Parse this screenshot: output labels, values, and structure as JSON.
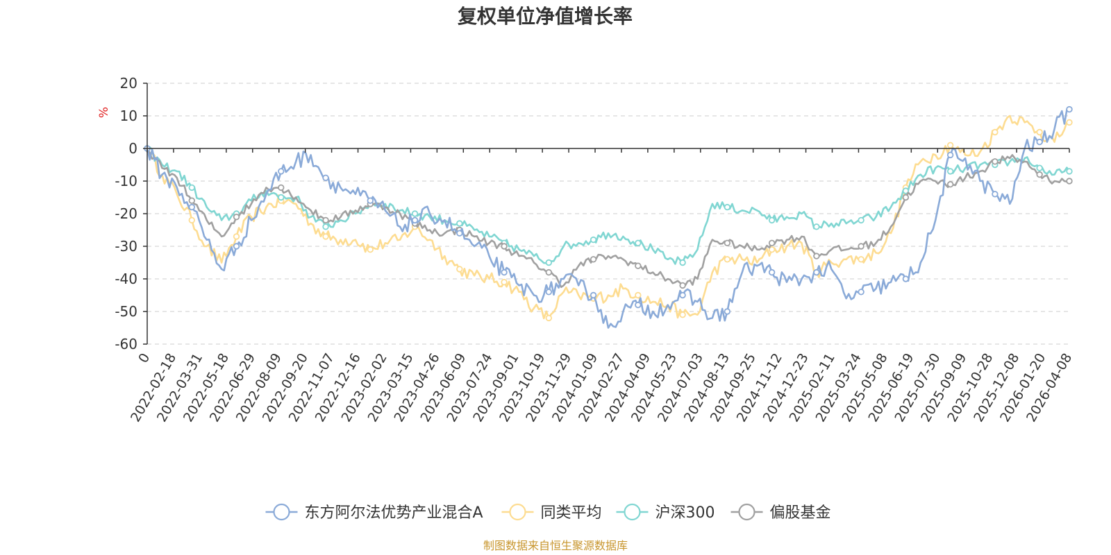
{
  "chart_data": {
    "type": "line",
    "title": "复权单位净值增长率",
    "ylabel": "%",
    "ylim": [
      -60,
      20
    ],
    "y_ticks": [
      20,
      10,
      0,
      -10,
      -20,
      -30,
      -40,
      -50,
      -60
    ],
    "x_ticks": [
      "0",
      "2022-02-18",
      "2022-03-31",
      "2022-05-18",
      "2022-06-29",
      "2022-08-09",
      "2022-09-20",
      "2022-11-07",
      "2022-12-16",
      "2023-02-02",
      "2023-03-15",
      "2023-04-26",
      "2023-06-09",
      "2023-07-24",
      "2023-09-01",
      "2023-10-19",
      "2023-11-29",
      "2024-01-09",
      "2024-02-27",
      "2024-04-09",
      "2024-05-23",
      "2024-07-03",
      "2024-08-13",
      "2024-09-25",
      "2024-11-12",
      "2024-12-23",
      "2025-02-11",
      "2025-03-24",
      "2025-05-08",
      "2025-06-19",
      "2025-07-30",
      "2025-09-09",
      "2025-10-28",
      "2025-12-08",
      "2026-01-20",
      "2026-04-08"
    ],
    "grid": "dashed-horizontal",
    "legend_position": "bottom-center",
    "source_note": "制图数据来自恒生聚源数据库",
    "series": [
      {
        "name": "东方阿尔法优势产业混合A",
        "color": "#8aaad8",
        "values": [
          0,
          -8,
          -12,
          -18,
          -28,
          -37,
          -30,
          -22,
          -14,
          -7,
          -4,
          -2,
          -9,
          -12,
          -14,
          -16,
          -19,
          -24,
          -22,
          -20,
          -22,
          -26,
          -30,
          -33,
          -38,
          -42,
          -45,
          -44,
          -40,
          -42,
          -45,
          -55,
          -50,
          -48,
          -50,
          -48,
          -45,
          -47,
          -52,
          -50,
          -38,
          -36,
          -38,
          -41,
          -40,
          -38,
          -37,
          -46,
          -44,
          -43,
          -41,
          -40,
          -35,
          -22,
          -2,
          -3,
          -10,
          -14,
          -17,
          0,
          2,
          6,
          12
        ]
      },
      {
        "name": "同类平均",
        "color": "#fddc91",
        "values": [
          0,
          -8,
          -14,
          -22,
          -30,
          -35,
          -27,
          -21,
          -18,
          -16,
          -17,
          -23,
          -27,
          -28,
          -28,
          -31,
          -29,
          -28,
          -24,
          -28,
          -33,
          -37,
          -39,
          -40,
          -41,
          -44,
          -49,
          -52,
          -44,
          -45,
          -46,
          -45,
          -43,
          -45,
          -47,
          -48,
          -51,
          -51,
          -38,
          -34,
          -34,
          -35,
          -31,
          -30,
          -29,
          -38,
          -35,
          -34,
          -34,
          -32,
          -26,
          -12,
          -4,
          -2,
          1,
          -2,
          -1,
          5,
          10,
          8,
          5,
          2,
          8
        ]
      },
      {
        "name": "沪深300",
        "color": "#80d6d2",
        "values": [
          0,
          -5,
          -7,
          -12,
          -18,
          -22,
          -20,
          -16,
          -13,
          -15,
          -15,
          -21,
          -24,
          -22,
          -20,
          -17,
          -17,
          -19,
          -20,
          -21,
          -22,
          -23,
          -25,
          -27,
          -29,
          -31,
          -33,
          -35,
          -30,
          -29,
          -28,
          -26,
          -27,
          -29,
          -31,
          -34,
          -35,
          -31,
          -17,
          -18,
          -19,
          -19,
          -22,
          -21,
          -20,
          -24,
          -23,
          -23,
          -22,
          -21,
          -18,
          -13,
          -8,
          -6,
          -7,
          -6,
          -5,
          -5,
          -4,
          -3,
          -6,
          -8,
          -7
        ]
      },
      {
        "name": "偏股基金",
        "color": "#a0a0a0",
        "values": [
          0,
          -6,
          -9,
          -16,
          -22,
          -27,
          -21,
          -17,
          -12,
          -12,
          -15,
          -19,
          -22,
          -21,
          -19,
          -17,
          -18,
          -20,
          -23,
          -25,
          -26,
          -25,
          -27,
          -29,
          -30,
          -33,
          -35,
          -38,
          -42,
          -36,
          -34,
          -33,
          -34,
          -36,
          -38,
          -40,
          -42,
          -40,
          -28,
          -29,
          -30,
          -31,
          -29,
          -28,
          -27,
          -33,
          -31,
          -31,
          -30,
          -29,
          -24,
          -15,
          -10,
          -10,
          -11,
          -9,
          -7,
          -4,
          -3,
          -4,
          -8,
          -10,
          -10
        ]
      }
    ]
  }
}
